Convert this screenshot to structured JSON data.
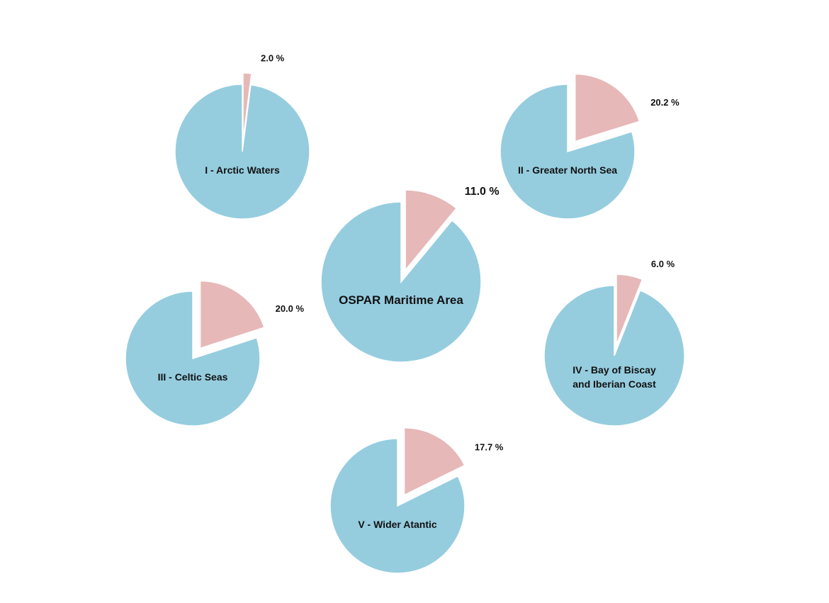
{
  "colors": {
    "main_slice": "#95cddf",
    "highlight_slice": "#e7b8b8",
    "slice_stroke": "#ffffff"
  },
  "chart_data": [
    {
      "type": "pie",
      "title": "OSPAR Maritime Area",
      "categories": [
        "",
        ""
      ],
      "values": [
        89.0,
        11.0
      ],
      "labels": [
        "",
        "11.0 %"
      ]
    },
    {
      "type": "pie",
      "title": "I - Arctic Waters",
      "categories": [
        "",
        ""
      ],
      "values": [
        98.0,
        2.0
      ],
      "labels": [
        "",
        "2.0 %"
      ]
    },
    {
      "type": "pie",
      "title": "II - Greater North Sea",
      "categories": [
        "",
        ""
      ],
      "values": [
        79.8,
        20.2
      ],
      "labels": [
        "",
        "20.2 %"
      ]
    },
    {
      "type": "pie",
      "title": "III - Celtic Seas",
      "categories": [
        "",
        ""
      ],
      "values": [
        80.0,
        20.0
      ],
      "labels": [
        "",
        "20.0 %"
      ]
    },
    {
      "type": "pie",
      "title": "IV - Bay of Biscay and Iberian Coast",
      "title_lines": [
        "IV - Bay of Biscay",
        "and Iberian Coast"
      ],
      "categories": [
        "",
        ""
      ],
      "values": [
        94.0,
        6.0
      ],
      "labels": [
        "",
        "6.0 %"
      ]
    },
    {
      "type": "pie",
      "title": "V - Wider Atantic",
      "categories": [
        "",
        ""
      ],
      "values": [
        82.3,
        17.7
      ],
      "labels": [
        "",
        "17.7 %"
      ]
    }
  ]
}
